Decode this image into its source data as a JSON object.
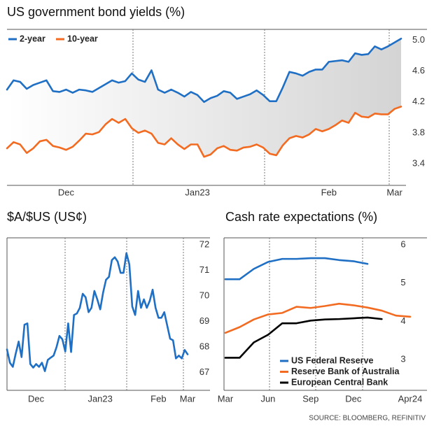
{
  "chart_data": [
    {
      "type": "line",
      "title": "US government bond yields (%)",
      "categories": [
        null,
        null,
        null,
        null,
        null,
        null,
        null,
        null,
        null,
        "Dec",
        null,
        null,
        null,
        null,
        null,
        null,
        null,
        null,
        null,
        null,
        null,
        null,
        null,
        null,
        null,
        null,
        null,
        null,
        null,
        "Jan23",
        null,
        null,
        null,
        null,
        null,
        null,
        null,
        null,
        null,
        null,
        null,
        null,
        null,
        null,
        null,
        null,
        null,
        null,
        null,
        "Feb",
        null,
        null,
        null,
        null,
        null,
        null,
        null,
        null,
        null,
        "Mar",
        null
      ],
      "series": [
        {
          "name": "2-year",
          "color": "#1f6fc5",
          "values": [
            4.36,
            4.48,
            4.46,
            4.37,
            4.42,
            4.45,
            4.48,
            4.34,
            4.33,
            4.36,
            4.32,
            4.36,
            4.35,
            4.33,
            4.38,
            4.43,
            4.48,
            4.45,
            4.47,
            4.57,
            4.49,
            4.46,
            4.61,
            4.36,
            4.32,
            4.36,
            4.32,
            4.27,
            4.33,
            4.29,
            4.2,
            4.25,
            4.28,
            4.34,
            4.32,
            4.24,
            4.27,
            4.3,
            4.35,
            4.29,
            4.21,
            4.21,
            4.39,
            4.59,
            4.57,
            4.54,
            4.59,
            4.62,
            4.62,
            4.72,
            4.73,
            4.74,
            4.72,
            4.83,
            4.81,
            4.82,
            4.92,
            4.88,
            4.92,
            4.97,
            5.02
          ]
        },
        {
          "name": "10-year",
          "color": "#f26b21",
          "values": [
            3.6,
            3.68,
            3.65,
            3.54,
            3.6,
            3.69,
            3.71,
            3.63,
            3.61,
            3.58,
            3.62,
            3.7,
            3.79,
            3.78,
            3.81,
            3.91,
            3.98,
            3.93,
            3.98,
            3.86,
            3.8,
            3.83,
            3.79,
            3.67,
            3.65,
            3.73,
            3.65,
            3.59,
            3.65,
            3.65,
            3.49,
            3.52,
            3.6,
            3.63,
            3.58,
            3.57,
            3.61,
            3.62,
            3.65,
            3.61,
            3.53,
            3.51,
            3.64,
            3.73,
            3.76,
            3.74,
            3.78,
            3.85,
            3.82,
            3.85,
            3.9,
            3.96,
            3.93,
            4.06,
            4.01,
            4.0,
            4.05,
            4.04,
            4.04,
            4.11,
            4.14
          ]
        }
      ],
      "ylim": [
        3.12,
        5.14
      ],
      "yticks": [
        {
          "value": 5,
          "label": "5.0"
        },
        4.6,
        4.2,
        3.8,
        3.4
      ],
      "y_axis_side": "right",
      "legend": "top-left",
      "spread_shading": true
    },
    {
      "type": "line",
      "title": "$A/$US (US¢)",
      "categories": [
        null,
        null,
        null,
        null,
        null,
        null,
        null,
        null,
        null,
        null,
        "Dec",
        null,
        null,
        null,
        null,
        null,
        null,
        null,
        null,
        null,
        null,
        null,
        null,
        null,
        null,
        null,
        null,
        null,
        null,
        null,
        null,
        null,
        "Jan23",
        null,
        null,
        null,
        null,
        null,
        null,
        null,
        null,
        null,
        null,
        null,
        null,
        null,
        null,
        null,
        null,
        null,
        null,
        null,
        "Feb",
        null,
        null,
        null,
        null,
        null,
        null,
        null,
        null,
        null,
        "Mar"
      ],
      "series": [
        {
          "color": "#1f6fc5",
          "values": [
            67.9,
            67.38,
            67.22,
            67.74,
            68.21,
            67.6,
            68.87,
            68.92,
            67.33,
            67.19,
            67.33,
            67.22,
            67.38,
            67.05,
            67.49,
            67.58,
            67.66,
            67.99,
            68.43,
            68.3,
            67.82,
            68.92,
            67.8,
            69.25,
            69.31,
            69.53,
            70.08,
            69.94,
            69.36,
            69.53,
            70.19,
            69.86,
            69.47,
            70.13,
            70.63,
            70.74,
            71.4,
            71.51,
            71.34,
            70.9,
            70.9,
            71.67,
            71.23,
            69.58,
            69.25,
            70.19,
            69.53,
            69.86,
            69.53,
            69.8,
            70.24,
            69.53,
            69.14,
            69.14,
            69.36,
            68.84,
            68.32,
            68.26,
            67.55,
            67.66,
            67.55,
            67.88,
            67.71
          ]
        }
      ],
      "ylim": [
        66.3,
        72.27
      ],
      "yticks": [
        72,
        71,
        70,
        69,
        68,
        67
      ],
      "y_axis_side": "right"
    },
    {
      "type": "line",
      "title": "Cash rate expectations (%)",
      "categories": [
        "Mar",
        null,
        null,
        "Jun",
        null,
        null,
        "Sep",
        null,
        null,
        "Dec",
        null,
        null,
        null,
        "Apr24"
      ],
      "series": [
        {
          "name": "US Federal Reserve",
          "color": "#1f6fc5",
          "values": [
            5.1,
            5.1,
            5.37,
            5.55,
            5.63,
            5.63,
            5.65,
            5.65,
            5.6,
            5.57,
            5.5,
            null,
            null,
            null
          ]
        },
        {
          "name": "Reserve Bank of Australia",
          "color": "#f26b21",
          "values": [
            3.7,
            3.85,
            4.05,
            4.18,
            4.22,
            4.38,
            4.35,
            4.4,
            4.46,
            4.42,
            4.36,
            4.28,
            4.15,
            4.12
          ]
        },
        {
          "name": "European Central Bank",
          "color": "#000000",
          "values": [
            3.05,
            3.05,
            3.45,
            3.65,
            3.95,
            3.95,
            4.02,
            4.05,
            4.06,
            4.08,
            4.1,
            4.06,
            null,
            null
          ]
        }
      ],
      "ylim": [
        2.2,
        6.18
      ],
      "yticks": [
        6,
        5,
        4,
        3
      ],
      "y_axis_side": "right-inside",
      "legend": "bottom-left"
    }
  ],
  "source": "SOURCE: BLOOMBERG, REFINITIV"
}
